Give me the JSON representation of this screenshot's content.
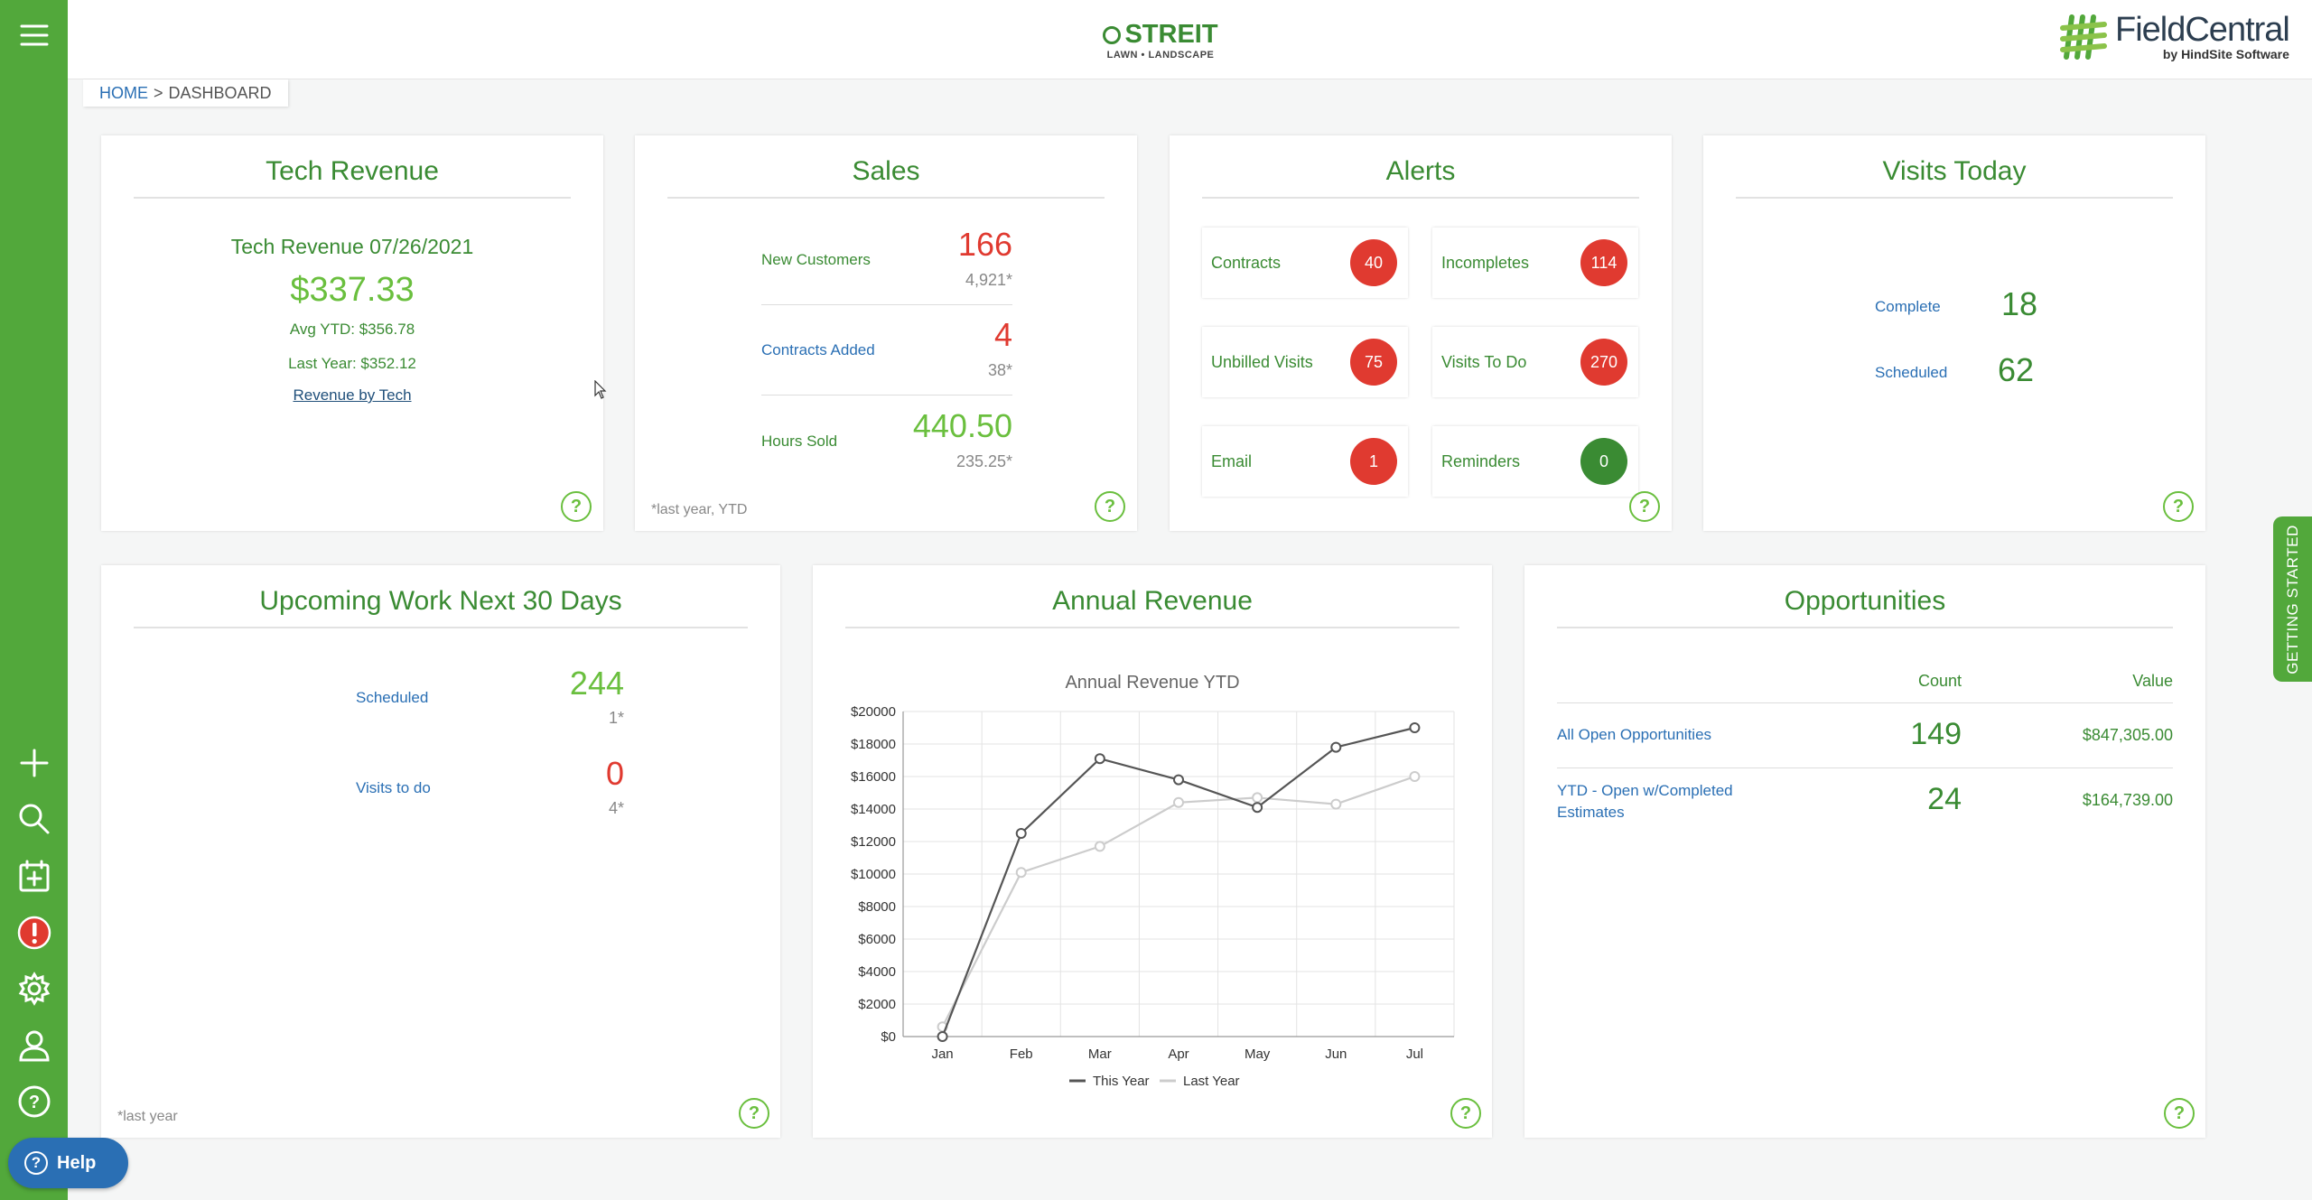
{
  "header": {
    "brand_main": "STREIT",
    "brand_sub": "LAWN • LANDSCAPE",
    "app_name": "FieldCentral",
    "app_by": "by HindSite Software"
  },
  "breadcrumb": {
    "home": "HOME",
    "sep": ">",
    "current": "DASHBOARD"
  },
  "sidebar": {
    "menu_icon": "hamburger-icon",
    "items": [
      "plus-icon",
      "search-icon",
      "calendar-add-icon",
      "alert-icon",
      "gear-icon",
      "user-icon",
      "help-icon"
    ],
    "help_label": "Help"
  },
  "getting_started": "GETTING STARTED",
  "tech_revenue": {
    "title": "Tech Revenue",
    "subtitle": "Tech Revenue 07/26/2021",
    "amount": "$337.33",
    "avg_ytd": "Avg YTD: $356.78",
    "last_year": "Last Year: $352.12",
    "link": "Revenue by Tech"
  },
  "sales": {
    "title": "Sales",
    "rows": [
      {
        "label": "New Customers",
        "value": "166",
        "prior": "4,921*"
      },
      {
        "label": "Contracts Added",
        "value": "4",
        "prior": "38*"
      },
      {
        "label": "Hours Sold",
        "value": "440.50",
        "prior": "235.25*"
      }
    ],
    "footnote": "*last year, YTD"
  },
  "alerts": {
    "title": "Alerts",
    "items": [
      {
        "label": "Contracts",
        "count": "40"
      },
      {
        "label": "Incompletes",
        "count": "114"
      },
      {
        "label": "Unbilled Visits",
        "count": "75"
      },
      {
        "label": "Visits To Do",
        "count": "270"
      },
      {
        "label": "Email",
        "count": "1"
      },
      {
        "label": "Reminders",
        "count": "0"
      }
    ]
  },
  "visits_today": {
    "title": "Visits Today",
    "rows": [
      {
        "label": "Complete",
        "value": "18"
      },
      {
        "label": "Scheduled",
        "value": "62"
      }
    ]
  },
  "upcoming": {
    "title": "Upcoming Work Next 30 Days",
    "rows": [
      {
        "label": "Scheduled",
        "value": "244",
        "prior": "1*"
      },
      {
        "label": "Visits to do",
        "value": "0",
        "prior": "4*"
      }
    ],
    "footnote": "*last year"
  },
  "annual_revenue": {
    "title": "Annual Revenue"
  },
  "opportunities": {
    "title": "Opportunities",
    "col_count": "Count",
    "col_value": "Value",
    "rows": [
      {
        "label": "All Open Opportunities",
        "count": "149",
        "value": "$847,305.00"
      },
      {
        "label": "YTD - Open w/Completed Estimates",
        "count": "24",
        "value": "$164,739.00"
      }
    ]
  },
  "colors": {
    "sidebar": "#52a83b",
    "brand_green": "#3a8b33",
    "light_green": "#6abf3e",
    "link_blue": "#2a6fb4",
    "alert_red": "#e03a30",
    "this_year": "#555555",
    "last_year": "#cccccc"
  },
  "chart_data": {
    "type": "line",
    "title": "Annual Revenue YTD",
    "categories": [
      "Jan",
      "Feb",
      "Mar",
      "Apr",
      "May",
      "Jun",
      "Jul"
    ],
    "series": [
      {
        "name": "This Year",
        "values": [
          0,
          12500,
          17100,
          15800,
          14100,
          17800,
          19000
        ]
      },
      {
        "name": "Last Year",
        "values": [
          600,
          10100,
          11700,
          14400,
          14700,
          14300,
          16000
        ]
      }
    ],
    "ylim": [
      0,
      20000
    ],
    "yticks": [
      "$0",
      "$2000",
      "$4000",
      "$6000",
      "$8000",
      "$10000",
      "$12000",
      "$14000",
      "$16000",
      "$18000",
      "$20000"
    ],
    "grid": true,
    "legend": "bottom"
  }
}
